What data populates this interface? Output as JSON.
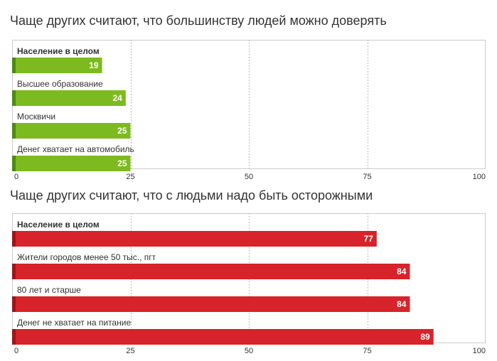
{
  "chart_data": [
    {
      "type": "bar",
      "orientation": "horizontal",
      "title": "Чаще других считают, что большинству людей можно доверять",
      "categories": [
        "Население в целом",
        "Высшее образование",
        "Москвичи",
        "Денег хватает на автомобиль"
      ],
      "values": [
        19,
        24,
        25,
        25
      ],
      "bold_category": "Население в целом",
      "xlim": [
        0,
        100
      ],
      "xticks": [
        "0",
        "25",
        "50",
        "75",
        "100"
      ],
      "color": "#7cba1f",
      "accent_color": "#4e8a12",
      "grid": true
    },
    {
      "type": "bar",
      "orientation": "horizontal",
      "title": "Чаще других считают, что с людьми надо быть осторожными",
      "categories": [
        "Население в целом",
        "Жители городов менее 50 тыс., пгт",
        "80 лет и старше",
        "Денег не хватает на питание"
      ],
      "values": [
        77,
        84,
        84,
        89
      ],
      "bold_category": "Население в целом",
      "xlim": [
        0,
        100
      ],
      "xticks": [
        "0",
        "25",
        "50",
        "75",
        "100"
      ],
      "color": "#d7232a",
      "accent_color": "#9e1519",
      "grid": true
    }
  ]
}
